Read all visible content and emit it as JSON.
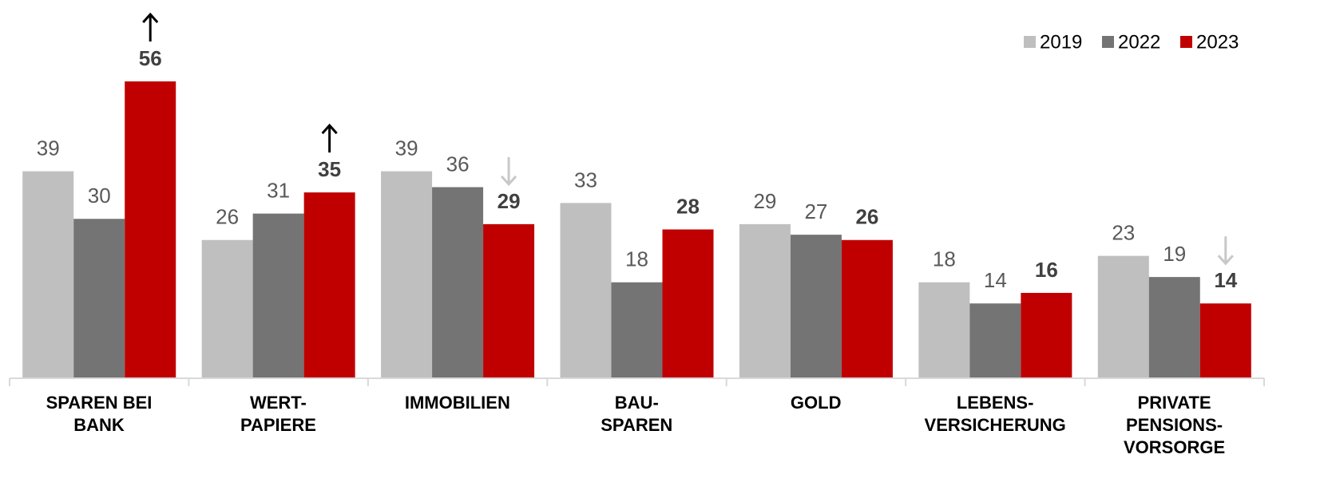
{
  "chart_data": {
    "type": "bar",
    "categories": [
      "SPAREN BEI\nBANK",
      "WERT-\nPAPIERE",
      "IMMOBILIEN",
      "BAU-\nSPAREN",
      "GOLD",
      "LEBENS-\nVERSICHERUNG",
      "PRIVATE\nPENSIONS-\nVORSORGE"
    ],
    "series": [
      {
        "name": "2019",
        "color": "#bfbfbf",
        "values": [
          39,
          26,
          39,
          33,
          29,
          18,
          23
        ]
      },
      {
        "name": "2022",
        "color": "#747474",
        "values": [
          30,
          31,
          36,
          18,
          27,
          14,
          19
        ]
      },
      {
        "name": "2023",
        "color": "#c00000",
        "values": [
          56,
          35,
          29,
          28,
          26,
          16,
          14
        ]
      }
    ],
    "arrows": [
      "up",
      "up",
      "down",
      null,
      null,
      null,
      "down"
    ],
    "ylim": [
      0,
      60
    ],
    "legend": "top-right"
  }
}
